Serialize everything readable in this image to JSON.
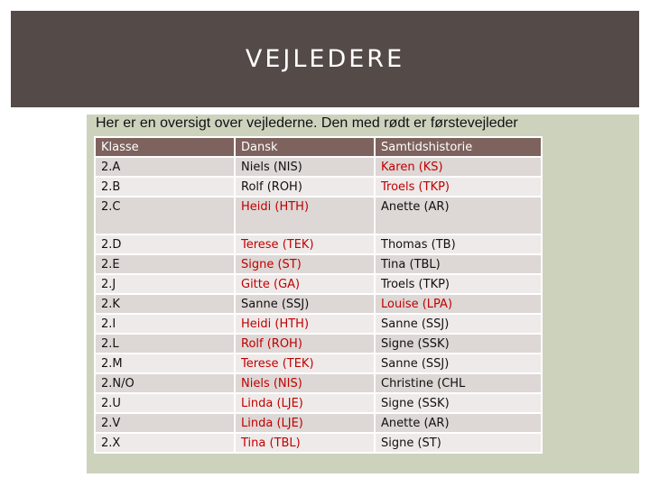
{
  "header": {
    "title": "VEJLEDERE"
  },
  "intro": {
    "text": "Her er en oversigt over vejlederne. Den med rødt er førstevejleder"
  },
  "table": {
    "columns": [
      "Klasse",
      "Dansk",
      "Samtidshistorie"
    ],
    "rows": [
      {
        "klasse": "2.A",
        "dansk": "Niels (NIS)",
        "samtid": "Karen (KS)",
        "red": "samtid"
      },
      {
        "klasse": "2.B",
        "dansk": "Rolf (ROH)",
        "samtid": "Troels (TKP)",
        "red": "samtid"
      },
      {
        "klasse": "2.C",
        "dansk": "Heidi (HTH)",
        "samtid": "Anette (AR)",
        "red": "dansk"
      },
      {
        "klasse": "2.D",
        "dansk": "Terese (TEK)",
        "samtid": "Thomas (TB)",
        "red": "dansk"
      },
      {
        "klasse": "2.E",
        "dansk": "Signe (ST)",
        "samtid": "Tina (TBL)",
        "red": "dansk"
      },
      {
        "klasse": "2.J",
        "dansk": "Gitte (GA)",
        "samtid": "Troels (TKP)",
        "red": "dansk"
      },
      {
        "klasse": "2.K",
        "dansk": "Sanne (SSJ)",
        "samtid": "Louise (LPA)",
        "red": "samtid"
      },
      {
        "klasse": "2.I",
        "dansk": "Heidi (HTH)",
        "samtid": "Sanne (SSJ)",
        "red": "dansk"
      },
      {
        "klasse": "2.L",
        "dansk": "Rolf (ROH)",
        "samtid": "Signe (SSK)",
        "red": "dansk"
      },
      {
        "klasse": "2.M",
        "dansk": "Terese (TEK)",
        "samtid": "Sanne (SSJ)",
        "red": "dansk"
      },
      {
        "klasse": "2.N/O",
        "dansk": "Niels (NIS)",
        "samtid": "Christine (CHL",
        "red": "dansk"
      },
      {
        "klasse": "2.U",
        "dansk": "Linda (LJE)",
        "samtid": "Signe (SSK)",
        "red": "dansk"
      },
      {
        "klasse": "2.V",
        "dansk": "Linda (LJE)",
        "samtid": "Anette (AR)",
        "red": "dansk"
      },
      {
        "klasse": "2.X",
        "dansk": "Tina (TBL)",
        "samtid": "Signe (ST)",
        "red": "dansk"
      }
    ]
  }
}
